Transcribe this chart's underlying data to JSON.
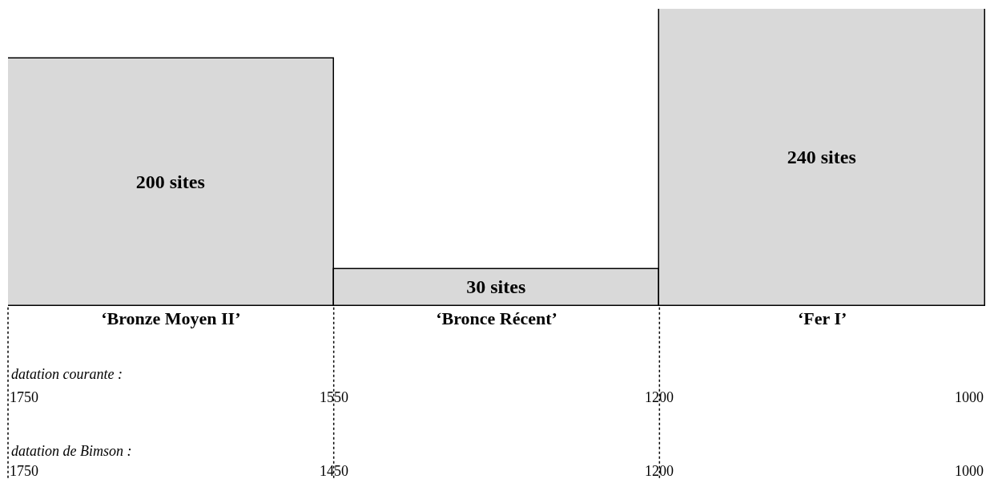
{
  "chart_data": {
    "type": "bar",
    "categories": [
      "‘Bronze Moyen II’",
      "‘Bronce Récent’",
      "‘Fer I’"
    ],
    "values": [
      200,
      30,
      240
    ],
    "value_labels": [
      "200 sites",
      "30 sites",
      "240 sites"
    ],
    "color": "#d9d9d9",
    "grid": false,
    "annotations": [
      "datation courante :",
      "1750",
      "1550",
      "1200",
      "1000",
      "datation de Bimson :",
      "1750",
      "1450",
      "1200",
      "1000"
    ]
  }
}
